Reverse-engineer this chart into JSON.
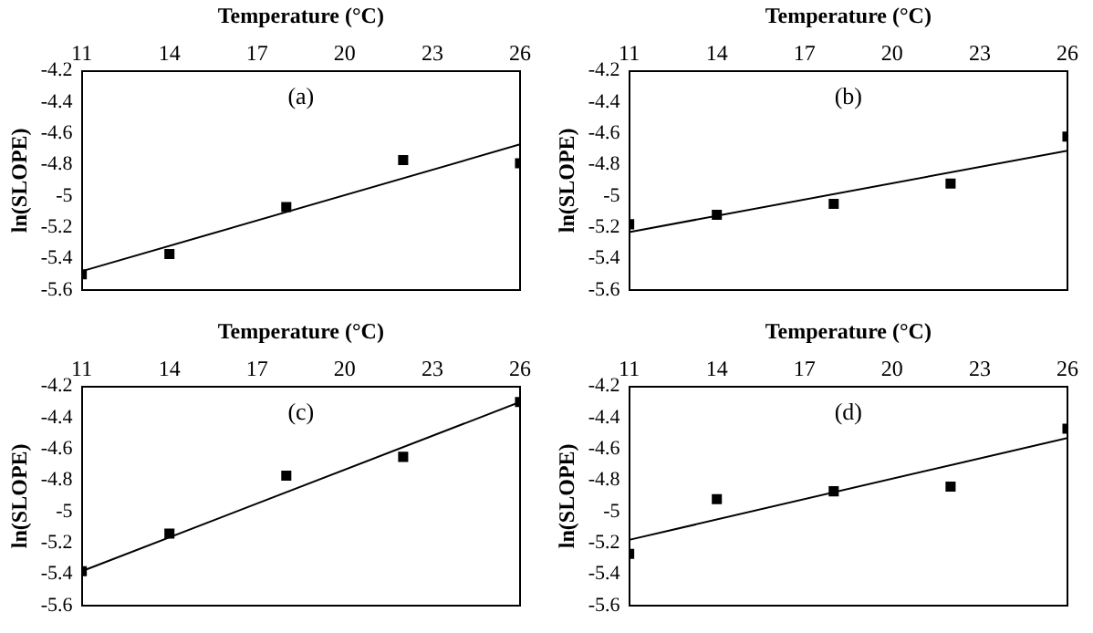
{
  "chart_data": [
    {
      "type": "scatter",
      "xlabel": "Temperature (°C)",
      "ylabel": "ln(SLOPE)",
      "xlim": [
        11,
        26
      ],
      "xticks": [
        11,
        14,
        17,
        20,
        23,
        26
      ],
      "ylim": [
        -5.6,
        -4.2
      ],
      "yticks": [
        -4.2,
        -4.4,
        -4.6,
        -4.8,
        -5,
        -5.2,
        -5.4,
        -5.6
      ],
      "grid": false,
      "legend": false,
      "marker": "square",
      "annotations": [
        "(a)"
      ],
      "series": [
        {
          "x": [
            11,
            14,
            18,
            22,
            26
          ],
          "values": [
            -5.5,
            -5.37,
            -5.07,
            -4.77,
            -4.79
          ],
          "color": "#000000"
        },
        {
          "type": "line",
          "x": [
            11,
            26
          ],
          "values": [
            -5.48,
            -4.67
          ],
          "color": "#000000",
          "marker": "none"
        }
      ]
    },
    {
      "type": "scatter",
      "xlabel": "Temperature (°C)",
      "ylabel": "ln(SLOPE)",
      "xlim": [
        11,
        26
      ],
      "xticks": [
        11,
        14,
        17,
        20,
        23,
        26
      ],
      "ylim": [
        -5.6,
        -4.2
      ],
      "yticks": [
        -4.2,
        -4.4,
        -4.6,
        -4.8,
        -5,
        -5.2,
        -5.4,
        -5.6
      ],
      "grid": false,
      "legend": false,
      "marker": "square",
      "annotations": [
        "(b)"
      ],
      "series": [
        {
          "x": [
            11,
            14,
            18,
            22,
            26
          ],
          "values": [
            -5.18,
            -5.12,
            -5.05,
            -4.92,
            -4.62
          ],
          "color": "#000000"
        },
        {
          "type": "line",
          "x": [
            11,
            26
          ],
          "values": [
            -5.23,
            -4.71
          ],
          "color": "#000000",
          "marker": "none"
        }
      ]
    },
    {
      "type": "scatter",
      "xlabel": "Temperature (°C)",
      "ylabel": "ln(SLOPE)",
      "xlim": [
        11,
        26
      ],
      "xticks": [
        11,
        14,
        17,
        20,
        23,
        26
      ],
      "ylim": [
        -5.6,
        -4.2
      ],
      "yticks": [
        -4.2,
        -4.4,
        -4.6,
        -4.8,
        -5,
        -5.2,
        -5.4,
        -5.6
      ],
      "grid": false,
      "legend": false,
      "marker": "square",
      "annotations": [
        "(c)"
      ],
      "series": [
        {
          "x": [
            11,
            14,
            18,
            22,
            26
          ],
          "values": [
            -5.38,
            -5.14,
            -4.77,
            -4.65,
            -4.3
          ],
          "color": "#000000"
        },
        {
          "type": "line",
          "x": [
            11,
            26
          ],
          "values": [
            -5.38,
            -4.3
          ],
          "color": "#000000",
          "marker": "none"
        }
      ]
    },
    {
      "type": "scatter",
      "xlabel": "Temperature (°C)",
      "ylabel": "ln(SLOPE)",
      "xlim": [
        11,
        26
      ],
      "xticks": [
        11,
        14,
        17,
        20,
        23,
        26
      ],
      "ylim": [
        -5.6,
        -4.2
      ],
      "yticks": [
        -4.2,
        -4.4,
        -4.6,
        -4.8,
        -5,
        -5.2,
        -5.4,
        -5.6
      ],
      "grid": false,
      "legend": false,
      "marker": "square",
      "annotations": [
        "(d)"
      ],
      "series": [
        {
          "x": [
            11,
            14,
            18,
            22,
            26
          ],
          "values": [
            -5.27,
            -4.92,
            -4.87,
            -4.84,
            -4.47
          ],
          "color": "#000000"
        },
        {
          "type": "line",
          "x": [
            11,
            26
          ],
          "values": [
            -5.18,
            -4.53
          ],
          "color": "#000000",
          "marker": "none"
        }
      ]
    }
  ]
}
